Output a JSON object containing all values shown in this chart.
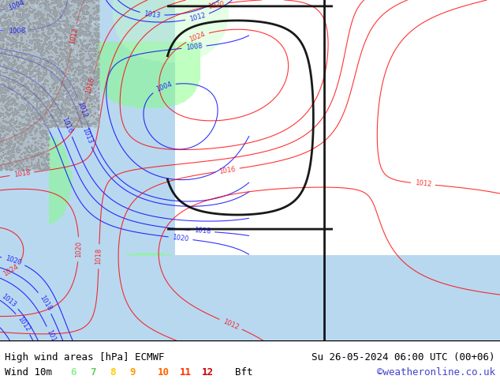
{
  "title_left": "High wind areas [hPa] ECMWF",
  "title_right": "Su 26-05-2024 06:00 UTC (00+06)",
  "legend_label": "Wind 10m",
  "legend_values": [
    "6",
    "7",
    "8",
    "9",
    "10",
    "11",
    "12"
  ],
  "legend_colors": [
    "#90ee90",
    "#66cc66",
    "#ffcc00",
    "#ff9900",
    "#ff6600",
    "#ff3300",
    "#cc0000"
  ],
  "legend_suffix": "Bft",
  "watermark": "©weatheronline.co.uk",
  "watermark_color": "#4444cc",
  "bg_color": "#90ee90",
  "map_bg": "#90ee90",
  "figsize": [
    6.34,
    4.9
  ],
  "dpi": 100,
  "bottom_bar_color": "#e8e8e8",
  "title_fontsize": 9,
  "legend_fontsize": 9
}
